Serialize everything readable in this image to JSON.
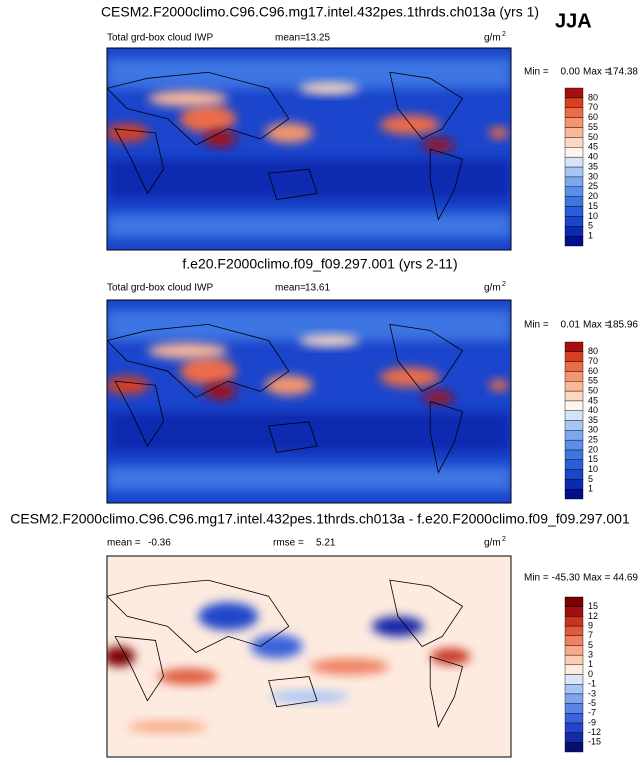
{
  "season": "JJA",
  "panels": [
    {
      "title": "CESM2.F2000climo.C96.C96.mg17.intel.432pes.1thrds.ch013a (yrs 1)",
      "left_label": "Total grd-box cloud IWP",
      "stats": [
        {
          "label": "mean=",
          "value": "13.25"
        }
      ],
      "units": "g/m",
      "units_sup": "2",
      "min_label": "Min =",
      "min": "0.00",
      "max_label": "Max =",
      "max": "174.38",
      "levels": [
        1,
        5,
        10,
        15,
        20,
        25,
        30,
        35,
        40,
        45,
        50,
        55,
        60,
        70,
        80
      ],
      "colors": [
        "#000f8c",
        "#0a2ab0",
        "#1a45cc",
        "#2a5ed8",
        "#3d75e2",
        "#5a8eea",
        "#7da8f0",
        "#a8c6f5",
        "#d4e4fa",
        "#fff5ec",
        "#fdd8c0",
        "#fbb898",
        "#f59570",
        "#ec6c48",
        "#d84020",
        "#a50f0f"
      ]
    },
    {
      "title": "f.e20.F2000climo.f09_f09.297.001 (yrs 2-11)",
      "left_label": "Total grd-box cloud IWP",
      "stats": [
        {
          "label": "mean=",
          "value": "13.61"
        }
      ],
      "units": "g/m",
      "units_sup": "2",
      "min_label": "Min =",
      "min": "0.01",
      "max_label": "Max =",
      "max": "185.96",
      "levels": [
        1,
        5,
        10,
        15,
        20,
        25,
        30,
        35,
        40,
        45,
        50,
        55,
        60,
        70,
        80
      ],
      "colors": [
        "#000f8c",
        "#0a2ab0",
        "#1a45cc",
        "#2a5ed8",
        "#3d75e2",
        "#5a8eea",
        "#7da8f0",
        "#a8c6f5",
        "#d4e4fa",
        "#fff5ec",
        "#fdd8c0",
        "#fbb898",
        "#f59570",
        "#ec6c48",
        "#d84020",
        "#a50f0f"
      ]
    },
    {
      "title": "CESM2.F2000climo.C96.C96.mg17.intel.432pes.1thrds.ch013a - f.e20.F2000climo.f09_f09.297.001",
      "stats": [
        {
          "label": "mean =",
          "value": "-0.36"
        },
        {
          "label": "rmse =",
          "value": "5.21"
        }
      ],
      "units": "g/m",
      "units_sup": "2",
      "min_label": "Min =",
      "min": "-45.30",
      "max_label": "Max =",
      "max": "44.69",
      "levels": [
        -15,
        -12,
        -9,
        -7,
        -5,
        -3,
        -1,
        0,
        1,
        3,
        5,
        7,
        9,
        12,
        15
      ],
      "colors": [
        "#08106e",
        "#1428a8",
        "#2346cc",
        "#3a64dc",
        "#5a84e8",
        "#80a4f0",
        "#a8c4f6",
        "#d8e6fa",
        "#fdebe0",
        "#fbcdb4",
        "#f7aa88",
        "#ef8060",
        "#e05a3c",
        "#c83420",
        "#a01010",
        "#7a0000"
      ]
    }
  ]
}
